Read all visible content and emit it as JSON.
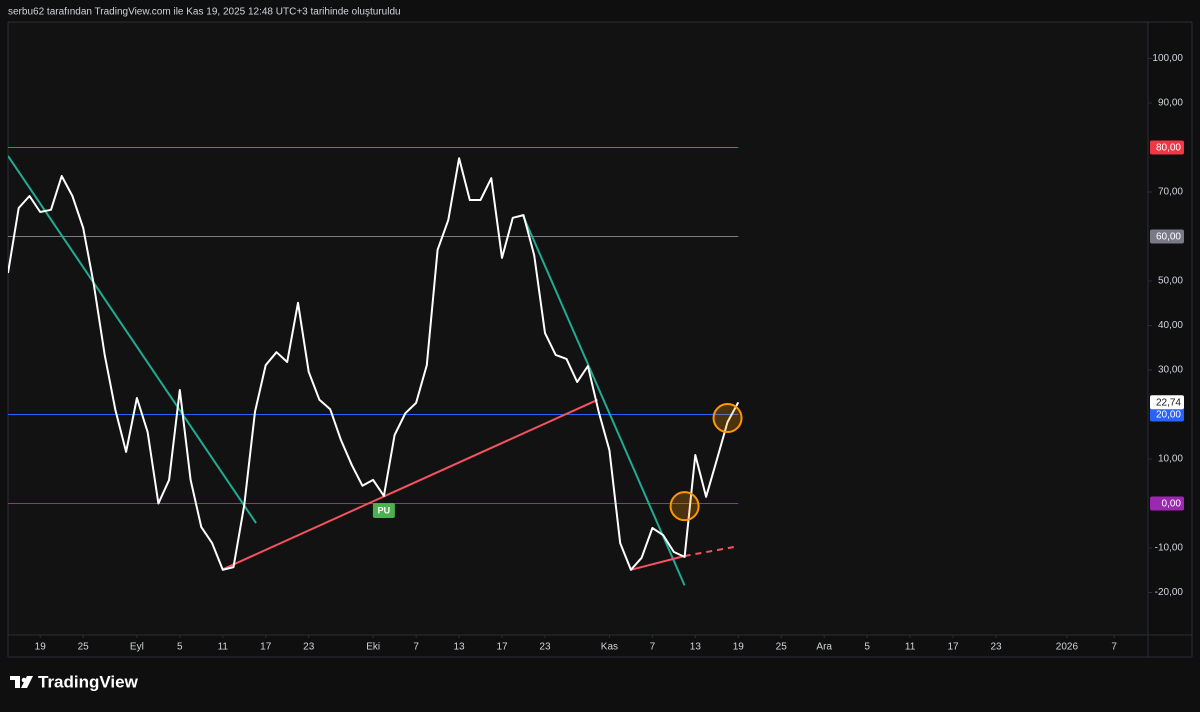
{
  "header": "serbu62 tarafından TradingView.com ile Kas 19, 2025 12:48 UTC+3 tarihinde oluşturuldu",
  "brand": "TradingView",
  "chart_data": {
    "type": "line",
    "color": "#ffffff",
    "x": [
      0,
      1,
      2,
      3,
      4,
      5,
      6,
      7,
      8,
      9,
      10,
      11,
      12,
      13,
      14,
      15,
      16,
      17,
      18,
      19,
      20,
      21,
      22,
      23,
      24,
      25,
      26,
      27,
      28,
      29,
      30,
      31,
      32,
      33,
      34,
      35,
      36,
      37,
      38,
      39,
      40,
      41,
      42,
      43,
      44,
      45,
      46,
      47,
      48,
      49,
      50,
      51,
      52,
      53,
      54,
      55,
      56,
      57,
      58,
      59,
      60,
      61,
      62,
      63,
      64,
      65,
      66,
      67,
      68
    ],
    "values": [
      51.8,
      66.4,
      69.1,
      65.5,
      66.0,
      73.6,
      69.1,
      61.9,
      49.1,
      33.4,
      21.0,
      11.6,
      23.7,
      16.1,
      0,
      5.3,
      25.5,
      5.3,
      -5.3,
      -8.9,
      -14.9,
      -14.3,
      -0.3,
      20.6,
      31.1,
      34.0,
      31.8,
      45.1,
      29.6,
      23.3,
      21.2,
      14.3,
      8.7,
      4.0,
      5.3,
      1.7,
      15.4,
      20.3,
      22.6,
      31.1,
      57.0,
      63.7,
      77.6,
      68.2,
      68.2,
      73.1,
      55.2,
      64.2,
      64.8,
      55.8,
      38.3,
      33.4,
      32.5,
      27.3,
      30.9,
      20.6,
      12.0,
      -8.9,
      -14.9,
      -12.2,
      -5.5,
      -7.1,
      -10.9,
      -12.0,
      10.9,
      1.5,
      9.8,
      18.3,
      22.74
    ],
    "last_value_label": "22,74",
    "xlim": [
      0,
      106.15
    ],
    "ylim": [
      -29.55,
      108.2
    ],
    "xticks": [
      {
        "value": 3,
        "label": "19"
      },
      {
        "value": 7,
        "label": "25"
      },
      {
        "value": 12,
        "label": "Eyl"
      },
      {
        "value": 16,
        "label": "5"
      },
      {
        "value": 20,
        "label": "11"
      },
      {
        "value": 24,
        "label": "17"
      },
      {
        "value": 28,
        "label": "23"
      },
      {
        "value": 34,
        "label": "Eki"
      },
      {
        "value": 38,
        "label": "7"
      },
      {
        "value": 42,
        "label": "13"
      },
      {
        "value": 46,
        "label": "17"
      },
      {
        "value": 50,
        "label": "23"
      },
      {
        "value": 56,
        "label": "Kas"
      },
      {
        "value": 60,
        "label": "7"
      },
      {
        "value": 64,
        "label": "13"
      },
      {
        "value": 68,
        "label": "19"
      },
      {
        "value": 72,
        "label": "25"
      },
      {
        "value": 76,
        "label": "Ara"
      },
      {
        "value": 80,
        "label": "5"
      },
      {
        "value": 84,
        "label": "11"
      },
      {
        "value": 88,
        "label": "17"
      },
      {
        "value": 92,
        "label": "23"
      },
      {
        "value": 98.6,
        "label": "2026"
      },
      {
        "value": 103,
        "label": "7"
      }
    ],
    "yticks": [
      {
        "value": 100,
        "label": "100,00"
      },
      {
        "value": 90,
        "label": "90,00"
      },
      {
        "value": 70,
        "label": "70,00"
      },
      {
        "value": 50,
        "label": "50,00"
      },
      {
        "value": 40,
        "label": "40,00"
      },
      {
        "value": 30,
        "label": "30,00"
      },
      {
        "value": 10,
        "label": "10,00"
      },
      {
        "value": -10,
        "label": "-10,00"
      },
      {
        "value": -20,
        "label": "-20,00"
      }
    ],
    "hlines": [
      {
        "value": 80,
        "label": "80,00",
        "color": "#f23645"
      },
      {
        "value": 60,
        "label": "60,00",
        "color": "#787b86"
      },
      {
        "value": 20,
        "label": "20,00",
        "color": "#2962ff"
      },
      {
        "value": 0,
        "label": "0,00",
        "color": "#9c27b0"
      }
    ],
    "trendlines": [
      {
        "x": [
          0,
          23.1
        ],
        "y": [
          78.1,
          -4.4
        ],
        "color": "#22ab94",
        "dashed": false
      },
      {
        "x": [
          47.9,
          63.0
        ],
        "y": [
          65.0,
          -18.4
        ],
        "color": "#22ab94",
        "dashed": false
      },
      {
        "x": [
          19.9,
          54.9
        ],
        "y": [
          -14.9,
          23.3
        ],
        "color": "#f7525f",
        "dashed": false
      },
      {
        "x": [
          58.0,
          63.0
        ],
        "y": [
          -14.9,
          -11.8
        ],
        "color": "#f7525f",
        "dashed": false
      },
      {
        "x": [
          63.0,
          68.0
        ],
        "y": [
          -11.8,
          -9.6
        ],
        "color": "#f7525f",
        "dashed": true
      }
    ],
    "circles": [
      {
        "x": 63.0,
        "y": -0.6,
        "color": "#ff9800"
      },
      {
        "x": 67.0,
        "y": 19.2,
        "color": "#ff9800"
      }
    ],
    "annotations": [
      {
        "x": 35.0,
        "y": -0.8,
        "text": "PU",
        "color": "#4caf50"
      }
    ]
  }
}
